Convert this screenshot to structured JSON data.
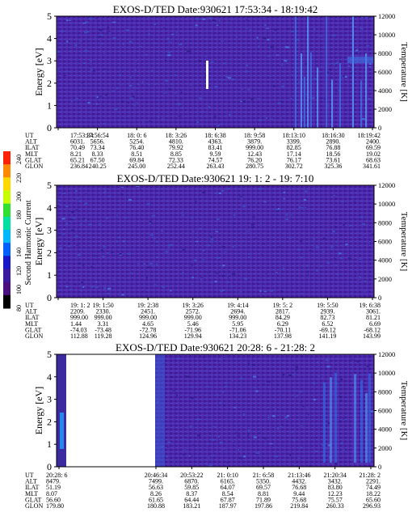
{
  "colorbar": {
    "label": "Second Harmonic Current",
    "ticks": [
      "240",
      "220",
      "200",
      "180",
      "160",
      "140",
      "120",
      "100",
      "80"
    ],
    "colors": [
      "#ff2000",
      "#ff8a00",
      "#ffd800",
      "#c8ff00",
      "#30e030",
      "#00e0a0",
      "#00b8ff",
      "#0060ff",
      "#1818c8",
      "#3a1a9e",
      "#4a1080",
      "#000000"
    ]
  },
  "panels": [
    {
      "title": "EXOS-D/TED   Date:930621  17:53:34 - 18:19:42",
      "ylabel": "Energy [eV]",
      "y2label": "Temperature [K]",
      "yticks": [
        "5",
        "4",
        "3",
        "2",
        "1",
        "0"
      ],
      "y2ticks": [
        "12000",
        "10000",
        "8000",
        "6000",
        "4000",
        "2000",
        "0"
      ],
      "row_labels": [
        "UT",
        "ALT",
        "ILAT",
        "MLT",
        "GLAT",
        "GLON"
      ],
      "columns": [
        [
          "17:53:34",
          "6031.",
          "70.49",
          "8.21",
          "65.21",
          "236.84"
        ],
        [
          "17:56:54",
          "5656.",
          "73.34",
          "8.33",
          "67.50",
          "240.25"
        ],
        [
          "18: 0: 6",
          "5254.",
          "76.40",
          "8.51",
          "69.84",
          "245.00"
        ],
        [
          "18: 3:26",
          "4810.",
          "79.92",
          "8.85",
          "72.33",
          "252.44"
        ],
        [
          "18: 6:38",
          "4363.",
          "83.41",
          "9.59",
          "74.57",
          "263.43"
        ],
        [
          "18: 9:58",
          "3879.",
          "999.00",
          "12.43",
          "76.20",
          "280.75"
        ],
        [
          "18:13:10",
          "3399.",
          "82.85",
          "17.14",
          "76.17",
          "302.72"
        ],
        [
          "18:16:30",
          "2890.",
          "76.88",
          "18.56",
          "73.61",
          "325.36"
        ],
        [
          "18:19:42",
          "2400.",
          "69.59",
          "19.02",
          "68.63",
          "341.61"
        ]
      ]
    },
    {
      "title": "EXOS-D/TED   Date:930621  19: 1: 2 - 19: 7:10",
      "ylabel": "Energy [eV]",
      "y2label": "Temperature [K]",
      "yticks": [
        "5",
        "4",
        "3",
        "2",
        "1",
        "0"
      ],
      "y2ticks": [
        "12000",
        "10000",
        "8000",
        "6000",
        "4000",
        "2000",
        "0"
      ],
      "row_labels": [
        "UT",
        "ALT",
        "ILAT",
        "MLT",
        "GLAT",
        "GLON"
      ],
      "columns": [
        [
          "19: 1: 2",
          "2209.",
          "999.00",
          "1.44",
          "-74.03",
          "112.88"
        ],
        [
          "19: 1:50",
          "2330.",
          "999.00",
          "3.31",
          "-73.48",
          "119.28"
        ],
        [
          "19: 2:38",
          "2451.",
          "999.00",
          "4.65",
          "-72.78",
          "124.96"
        ],
        [
          "19: 3:26",
          "2572.",
          "999.00",
          "5.46",
          "-71.96",
          "129.94"
        ],
        [
          "19: 4:14",
          "2694.",
          "999.00",
          "5.95",
          "-71.06",
          "134.23"
        ],
        [
          "19: 5: 2",
          "2817.",
          "84.29",
          "6.29",
          "-70.11",
          "137.98"
        ],
        [
          "19: 5:50",
          "2939.",
          "82.73",
          "6.52",
          "-69.12",
          "141.19"
        ],
        [
          "19: 6:38",
          "3061.",
          "81.21",
          "6.69",
          "-68.12",
          "143.99"
        ]
      ]
    },
    {
      "title": "EXOS-D/TED   Date:930621  20:28: 6 - 21:28: 2",
      "ylabel": "Energy [eV]",
      "y2label": "Temperature [K]",
      "yticks": [
        "5",
        "4",
        "3",
        "2",
        "1",
        "0"
      ],
      "y2ticks": [
        "12000",
        "10000",
        "8000",
        "6000",
        "4000",
        "2000",
        "0"
      ],
      "row_labels": [
        "UT",
        "ALT",
        "ILAT",
        "MLT",
        "GLAT",
        "GLON"
      ],
      "columns": [
        [
          "20:28: 6",
          "8479.",
          "51.19",
          "8.07",
          "56.60",
          "179.80"
        ],
        [
          "20:46:34",
          "7499.",
          "56.63",
          "8.26",
          "61.65",
          "180.88"
        ],
        [
          "20:53:22",
          "6870.",
          "59.85",
          "8.37",
          "64.44",
          "183.21"
        ],
        [
          "21: 0:10",
          "6165.",
          "64.07",
          "8.54",
          "67.87",
          "187.97"
        ],
        [
          "21: 6:58",
          "5350.",
          "69.57",
          "8.81",
          "71.89",
          "197.86"
        ],
        [
          "21:13:46",
          "4432.",
          "76.68",
          "9.44",
          "75.68",
          "219.84"
        ],
        [
          "21:20:34",
          "3432.",
          "83.80",
          "12.23",
          "75.57",
          "260.33"
        ],
        [
          "21:28: 2",
          "2291.",
          "74.49",
          "18.22",
          "65.60",
          "296.93"
        ]
      ]
    }
  ],
  "chart_data": [
    {
      "type": "heatmap",
      "title": "EXOS-D/TED   Date:930621  17:53:34 - 18:19:42",
      "xlabel": "",
      "ylabel": "Energy [eV]",
      "y2label": "Temperature [K]",
      "ylim": [
        0,
        5
      ],
      "y2lim": [
        0,
        12000
      ],
      "x_ticks": [
        "17:53:34",
        "17:56:54",
        "18: 0: 6",
        "18: 3:26",
        "18: 6:38",
        "18: 9:58",
        "18:13:10",
        "18:16:30",
        "18:19:42"
      ],
      "colorbar_range": [
        80,
        240
      ],
      "features": [
        {
          "ut": "18: 6:38",
          "energy_range": [
            1.5,
            2.7
          ],
          "note": "white vertical stripe"
        },
        {
          "ut_range": [
            "18:13:10",
            "18:19:42"
          ],
          "energy_range": [
            0,
            5
          ],
          "note": "enhanced vertical streaks"
        }
      ]
    },
    {
      "type": "heatmap",
      "title": "EXOS-D/TED   Date:930621  19: 1: 2 - 19: 7:10",
      "xlabel": "",
      "ylabel": "Energy [eV]",
      "y2label": "Temperature [K]",
      "ylim": [
        0,
        5
      ],
      "y2lim": [
        0,
        12000
      ],
      "x_ticks": [
        "19: 1: 2",
        "19: 1:50",
        "19: 2:38",
        "19: 3:26",
        "19: 4:14",
        "19: 5: 2",
        "19: 5:50",
        "19: 6:38"
      ],
      "colorbar_range": [
        80,
        240
      ]
    },
    {
      "type": "heatmap",
      "title": "EXOS-D/TED   Date:930621  20:28: 6 - 21:28: 2",
      "xlabel": "",
      "ylabel": "Energy [eV]",
      "y2label": "Temperature [K]",
      "ylim": [
        0,
        5
      ],
      "y2lim": [
        0,
        12000
      ],
      "x_ticks": [
        "20:28: 6",
        "20:46:34",
        "20:53:22",
        "21: 0:10",
        "21: 6:58",
        "21:13:46",
        "21:20:34",
        "21:28: 2"
      ],
      "colorbar_range": [
        80,
        240
      ],
      "features": [
        {
          "ut_range": [
            "20:28: 6",
            "20:46:34"
          ],
          "note": "data gap (white)"
        },
        {
          "ut_range": [
            "21:20:34",
            "21:28: 2"
          ],
          "energy_range": [
            0,
            5
          ],
          "note": "enhanced streaks"
        }
      ]
    }
  ]
}
